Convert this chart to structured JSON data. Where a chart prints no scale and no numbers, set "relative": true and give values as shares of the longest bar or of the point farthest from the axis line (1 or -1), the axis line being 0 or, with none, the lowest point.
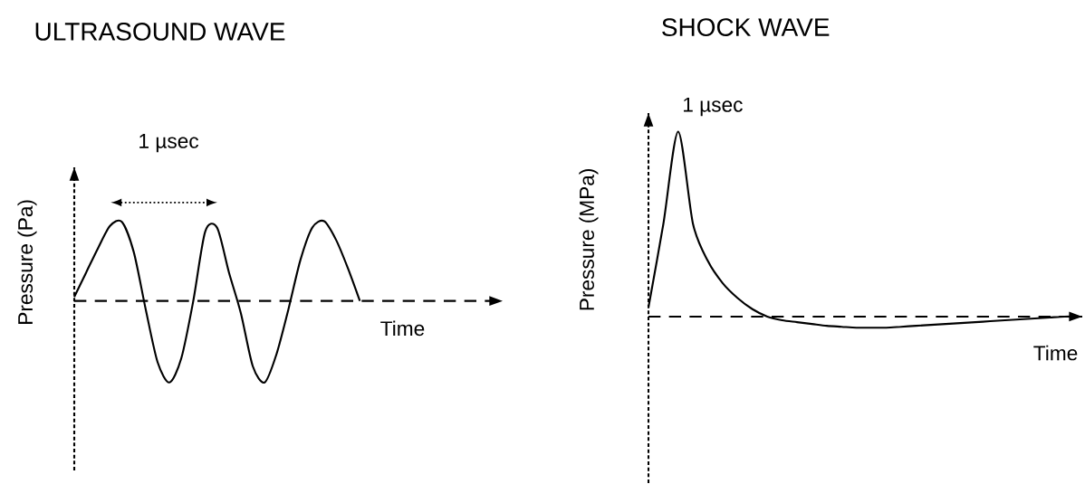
{
  "chart_data": [
    {
      "type": "line",
      "title": "ULTRASOUND WAVE",
      "xlabel": "Time",
      "ylabel": "Pressure (Pa)",
      "annotations": [
        "1 µsec"
      ],
      "relative": true,
      "legend": false,
      "marker": "none",
      "line_style": "solid",
      "ref_lines": [
        {
          "axis": "y",
          "value": 0,
          "color": "#000000",
          "line_style": "dashed"
        }
      ],
      "categories": [
        null,
        null,
        null,
        null,
        null,
        null,
        null,
        null,
        null,
        null,
        null,
        null,
        null,
        null,
        null,
        null,
        null,
        null,
        null,
        null,
        null,
        null,
        null,
        null,
        null
      ],
      "series": [
        {
          "color": "#000000",
          "values": [
            0.05,
            0.35,
            0.65,
            0.92,
            0.97,
            0.6,
            -0.1,
            -0.75,
            -1.0,
            -0.7,
            0,
            0.85,
            0.9,
            0.35,
            -0.15,
            -0.8,
            -1.0,
            -0.65,
            -0.1,
            0.5,
            0.9,
            0.98,
            0.75,
            0.4,
            0
          ]
        }
      ]
    },
    {
      "type": "line",
      "title": "SHOCK WAVE",
      "xlabel": "Time",
      "ylabel": "Pressure (MPa)",
      "annotations": [
        "1 µsec"
      ],
      "relative": true,
      "legend": false,
      "marker": "none",
      "line_style": "solid",
      "ref_lines": [
        {
          "axis": "y",
          "value": 0,
          "color": "#000000",
          "line_style": "dashed"
        }
      ],
      "categories": [
        null,
        null,
        null,
        null,
        null,
        null,
        null,
        null,
        null,
        null,
        null,
        null,
        null,
        null,
        null,
        null,
        null,
        null,
        null,
        null,
        null,
        null,
        null,
        null,
        null,
        null,
        null,
        null,
        null,
        null
      ],
      "series": [
        {
          "color": "#000000",
          "values": [
            0.05,
            0.5,
            1.0,
            0.5,
            0.3,
            0.18,
            0.1,
            0.04,
            0,
            -0.02,
            -0.03,
            -0.04,
            -0.05,
            -0.055,
            -0.06,
            -0.06,
            -0.06,
            -0.055,
            -0.05,
            -0.045,
            -0.04,
            -0.035,
            -0.03,
            -0.025,
            -0.02,
            -0.015,
            -0.01,
            -0.005,
            0,
            0
          ]
        }
      ]
    }
  ]
}
